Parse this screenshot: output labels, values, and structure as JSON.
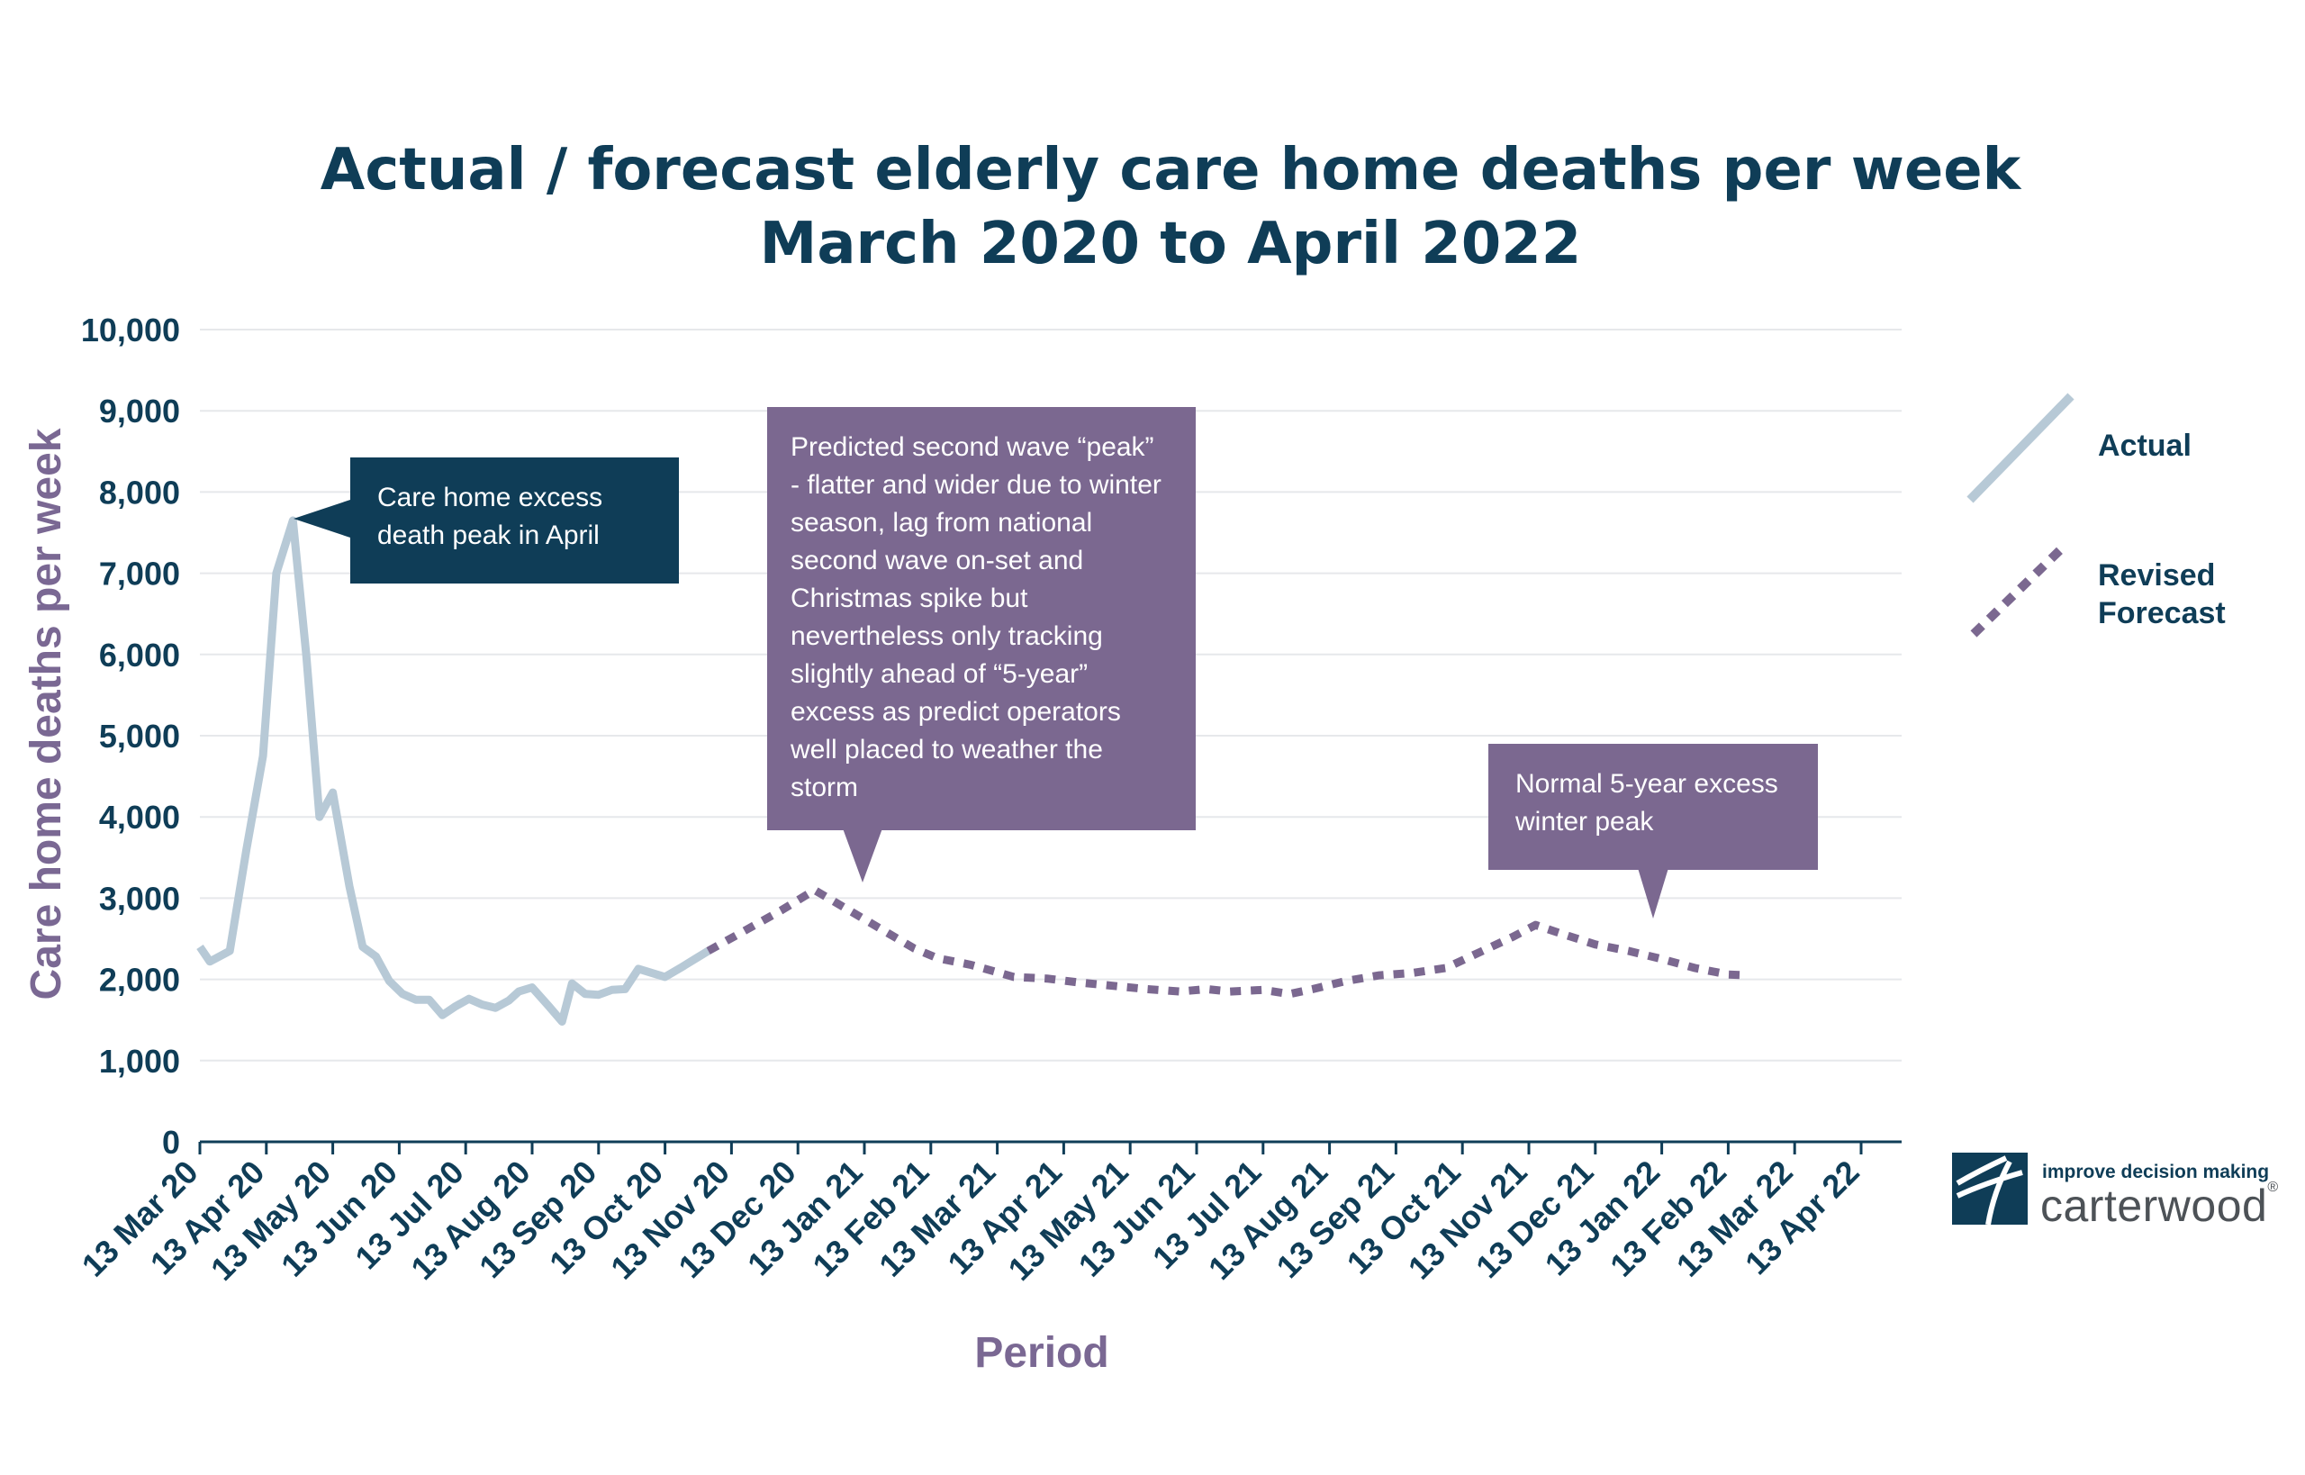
{
  "chart_data": {
    "type": "line",
    "title_lines": [
      "Actual / forecast elderly care home deaths per week",
      "March 2020 to April 2022"
    ],
    "xlabel": "Period",
    "ylabel": "Care home deaths per week",
    "ylim": [
      0,
      10000
    ],
    "yticks": [
      "0",
      "1,000",
      "2,000",
      "3,000",
      "4,000",
      "5,000",
      "6,000",
      "7,000",
      "8,000",
      "9,000",
      "10,000"
    ],
    "ytick_values": [
      0,
      1000,
      2000,
      3000,
      4000,
      5000,
      6000,
      7000,
      8000,
      9000,
      10000
    ],
    "xticks": [
      "13 Mar 20",
      "13 Apr 20",
      "13 May 20",
      "13 Jun 20",
      "13 Jul 20",
      "13 Aug 20",
      "13 Sep 20",
      "13 Oct 20",
      "13 Nov 20",
      "13 Dec 20",
      "13 Jan 21",
      "13 Feb 21",
      "13 Mar 21",
      "13 Apr 21",
      "13 May 21",
      "13 Jun 21",
      "13 Jul 21",
      "13 Aug 21",
      "13 Sep 21",
      "13 Oct 21",
      "13 Nov 21",
      "13 Dec 21",
      "13 Jan 22",
      "13 Feb 22",
      "13 Mar 22",
      "13 Apr 22"
    ],
    "grid": true,
    "legend_position": "right",
    "series": [
      {
        "name": "Actual",
        "style": "solid",
        "color": "#b7c9d6",
        "points": [
          [
            0,
            2400
          ],
          [
            0.15,
            2220
          ],
          [
            0.45,
            2350
          ],
          [
            0.7,
            3600
          ],
          [
            0.95,
            4750
          ],
          [
            1.15,
            7000
          ],
          [
            1.4,
            7650
          ],
          [
            1.6,
            6000
          ],
          [
            1.8,
            4000
          ],
          [
            2.0,
            4300
          ],
          [
            2.25,
            3150
          ],
          [
            2.45,
            2400
          ],
          [
            2.65,
            2280
          ],
          [
            2.85,
            1980
          ],
          [
            3.05,
            1820
          ],
          [
            3.25,
            1750
          ],
          [
            3.45,
            1750
          ],
          [
            3.65,
            1560
          ],
          [
            3.85,
            1670
          ],
          [
            4.05,
            1760
          ],
          [
            4.25,
            1690
          ],
          [
            4.45,
            1650
          ],
          [
            4.65,
            1740
          ],
          [
            4.8,
            1850
          ],
          [
            5.0,
            1900
          ],
          [
            5.25,
            1670
          ],
          [
            5.45,
            1480
          ],
          [
            5.6,
            1950
          ],
          [
            5.8,
            1820
          ],
          [
            6.0,
            1810
          ],
          [
            6.2,
            1870
          ],
          [
            6.4,
            1880
          ],
          [
            6.6,
            2130
          ],
          [
            6.8,
            2080
          ],
          [
            7.0,
            2030
          ],
          [
            7.25,
            2150
          ],
          [
            7.45,
            2250
          ],
          [
            7.65,
            2350
          ]
        ]
      },
      {
        "name": "Revised Forecast",
        "style": "dotted",
        "color": "#7b6890",
        "points": [
          [
            7.65,
            2350
          ],
          [
            8.2,
            2600
          ],
          [
            8.75,
            2850
          ],
          [
            9.25,
            3100
          ],
          [
            9.75,
            2860
          ],
          [
            10.25,
            2620
          ],
          [
            10.75,
            2380
          ],
          [
            11.1,
            2260
          ],
          [
            11.6,
            2180
          ],
          [
            12.25,
            2030
          ],
          [
            12.75,
            2010
          ],
          [
            13.25,
            1960
          ],
          [
            13.75,
            1920
          ],
          [
            14.25,
            1880
          ],
          [
            14.75,
            1850
          ],
          [
            15.15,
            1880
          ],
          [
            15.5,
            1850
          ],
          [
            16.0,
            1870
          ],
          [
            16.4,
            1820
          ],
          [
            16.75,
            1880
          ],
          [
            17.25,
            1980
          ],
          [
            17.75,
            2050
          ],
          [
            18.25,
            2080
          ],
          [
            18.75,
            2140
          ],
          [
            19.25,
            2330
          ],
          [
            19.75,
            2520
          ],
          [
            20.1,
            2670
          ],
          [
            20.5,
            2560
          ],
          [
            21.0,
            2430
          ],
          [
            21.5,
            2350
          ],
          [
            22.0,
            2250
          ],
          [
            22.5,
            2140
          ],
          [
            23.0,
            2060
          ],
          [
            23.3,
            2050
          ]
        ]
      }
    ],
    "annotations": [
      "Care home excess\ndeath peak in April",
      "Predicted second wave “peak”\n- flatter and wider due to winter\nseason, lag from national\nsecond wave on-set and\nChristmas spike but\nnevertheless only tracking\nslightly ahead of “5-year”\nexcess as predict operators\nwell placed to weather the\nstorm",
      "Normal 5-year excess\nwinter peak"
    ]
  },
  "legend": {
    "actual_label": "Actual",
    "forecast_label_line1": "Revised",
    "forecast_label_line2": "Forecast"
  },
  "callouts": {
    "april_peak": "Care home excess\ndeath peak in April",
    "second_wave": "Predicted second wave “peak”\n- flatter and wider due to winter\nseason, lag from national\nsecond wave on-set and\nChristmas spike but\nnevertheless only tracking\nslightly ahead of “5-year”\nexcess as predict operators\nwell placed to weather the\nstorm",
    "winter_peak": "Normal 5-year excess\nwinter peak"
  },
  "logo": {
    "tagline": "improve decision making",
    "name": "carterwood",
    "registered": "®"
  },
  "colors": {
    "navy": "#0f3d57",
    "purple": "#7a6893",
    "callout_navy": "#0f3d57",
    "callout_purple": "#7b6890",
    "actual_line": "#b7c9d6",
    "gridline": "#e6e8eb"
  }
}
